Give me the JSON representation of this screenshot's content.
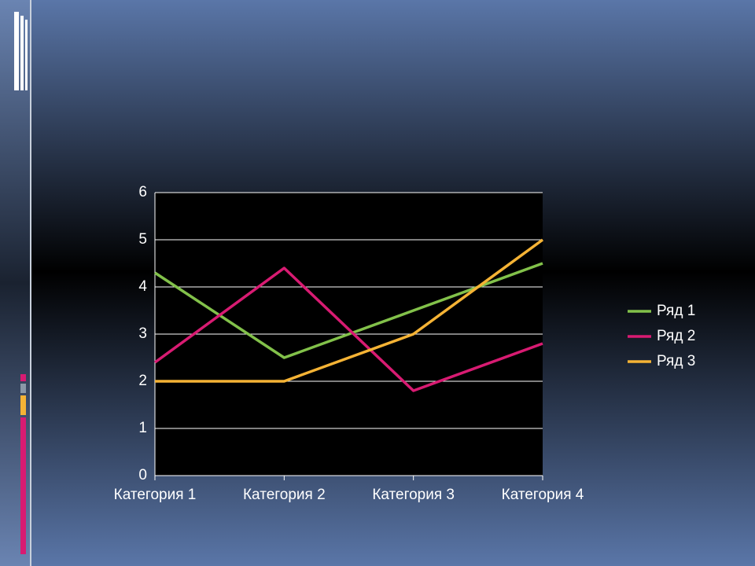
{
  "chart_data": {
    "type": "line",
    "categories": [
      "Категория 1",
      "Категория 2",
      "Категория 3",
      "Категория 4"
    ],
    "series": [
      {
        "name": "Ряд 1",
        "color": "#82c14a",
        "values": [
          4.3,
          2.5,
          3.5,
          4.5
        ]
      },
      {
        "name": "Ряд 2",
        "color": "#d81b72",
        "values": [
          2.4,
          4.4,
          1.8,
          2.8
        ]
      },
      {
        "name": "Ряд 3",
        "color": "#f5b335",
        "values": [
          2,
          2,
          3,
          5
        ]
      }
    ],
    "ylim": [
      0,
      6
    ],
    "yticks": [
      0,
      1,
      2,
      3,
      4,
      5,
      6
    ],
    "grid": true,
    "legend": "right"
  }
}
